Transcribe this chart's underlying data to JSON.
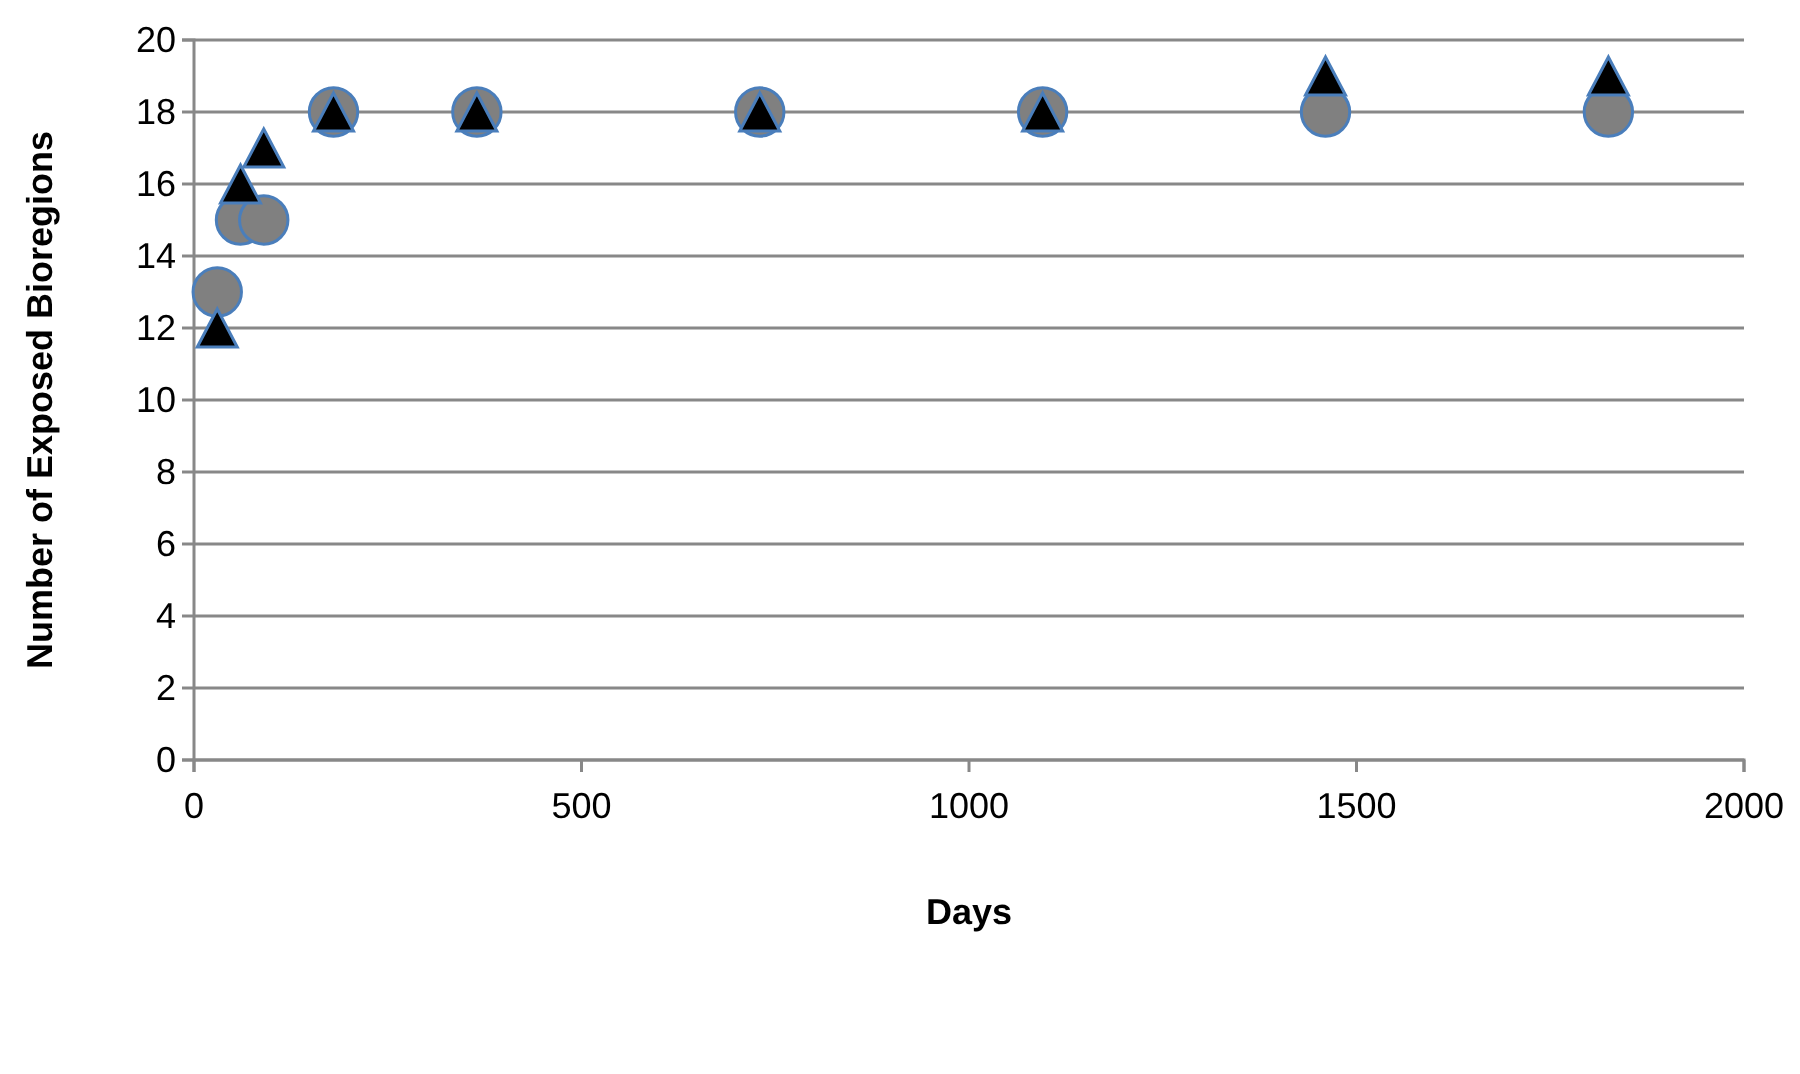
{
  "chart_data": {
    "type": "scatter",
    "xlabel": "Days",
    "ylabel": "Number of Exposed Bioregions",
    "xlim": [
      0,
      2000
    ],
    "xticks": [
      0,
      500,
      1000,
      1500,
      2000
    ],
    "ylim": [
      0,
      20
    ],
    "yticks": [
      0,
      2,
      4,
      6,
      8,
      10,
      12,
      14,
      16,
      18,
      20
    ],
    "grid": "y",
    "series": [
      {
        "color": "#808080",
        "marker": "circle",
        "x": [
          30,
          60,
          90,
          180,
          365,
          730,
          1095,
          1460,
          1825
        ],
        "values": [
          13,
          15,
          15,
          18,
          18,
          18,
          18,
          18,
          18
        ]
      },
      {
        "color": "#000000",
        "marker": "triangle",
        "x": [
          30,
          60,
          90,
          180,
          365,
          730,
          1095,
          1460,
          1825
        ],
        "values": [
          12,
          16,
          17,
          18,
          18,
          18,
          18,
          19,
          19
        ]
      }
    ]
  }
}
